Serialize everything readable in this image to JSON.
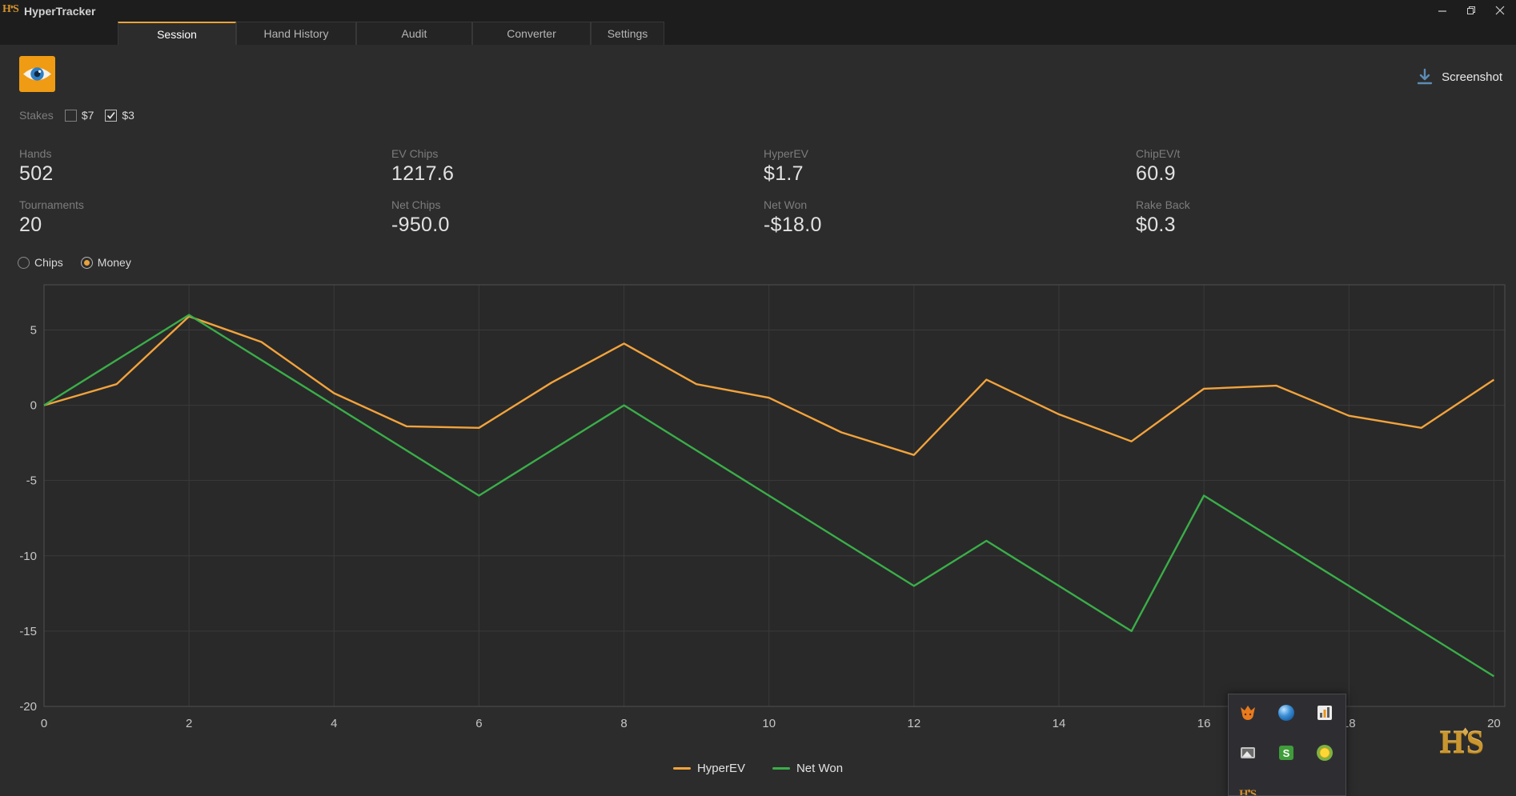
{
  "window": {
    "title": "HyperTracker",
    "controls": {
      "minimize_icon": "minimize-icon",
      "restore_icon": "restore-icon",
      "close_icon": "close-icon"
    }
  },
  "tabs": [
    {
      "label": "Session",
      "active": true
    },
    {
      "label": "Hand History",
      "active": false
    },
    {
      "label": "Audit",
      "active": false
    },
    {
      "label": "Converter",
      "active": false
    },
    {
      "label": "Settings",
      "active": false
    }
  ],
  "toolbar": {
    "screenshot_label": "Screenshot",
    "screenshot_icon": "download-arrow-icon",
    "eye_logo_icon": "eye-icon"
  },
  "filters": {
    "stakes_label": "Stakes",
    "options": [
      {
        "label": "$7",
        "checked": false
      },
      {
        "label": "$3",
        "checked": true
      }
    ]
  },
  "stats": [
    {
      "label": "Hands",
      "value": "502"
    },
    {
      "label": "EV Chips",
      "value": "1217.6"
    },
    {
      "label": "HyperEV",
      "value": "$1.7"
    },
    {
      "label": "ChipEV/t",
      "value": "60.9"
    },
    {
      "label": "Tournaments",
      "value": "20"
    },
    {
      "label": "Net Chips",
      "value": "-950.0"
    },
    {
      "label": "Net Won",
      "value": "-$18.0"
    },
    {
      "label": "Rake Back",
      "value": "$0.3"
    }
  ],
  "view_toggle": {
    "options": [
      {
        "label": "Chips",
        "selected": false
      },
      {
        "label": "Money",
        "selected": true
      }
    ]
  },
  "chart_data": {
    "type": "line",
    "title": "",
    "xlabel": "",
    "ylabel": "",
    "x": [
      0,
      1,
      2,
      3,
      4,
      5,
      6,
      7,
      8,
      9,
      10,
      11,
      12,
      13,
      14,
      15,
      16,
      17,
      18,
      19,
      20
    ],
    "series": [
      {
        "name": "HyperEV",
        "color": "#f2a33c",
        "values": [
          0,
          1.4,
          5.9,
          4.2,
          0.8,
          -1.4,
          -1.5,
          1.5,
          4.1,
          1.4,
          0.5,
          -1.8,
          -3.3,
          1.7,
          -0.6,
          -2.4,
          1.1,
          1.3,
          -0.7,
          -1.5,
          1.7
        ]
      },
      {
        "name": "Net Won",
        "color": "#3aae49",
        "values": [
          0,
          3,
          6,
          3,
          0,
          -3,
          -6,
          -3,
          0,
          -3,
          -6,
          -9,
          -12,
          -9,
          -12,
          -15,
          -6,
          -9,
          -12,
          -15,
          -18
        ]
      }
    ],
    "xticks": [
      0,
      2,
      4,
      6,
      8,
      10,
      12,
      14,
      16,
      18,
      20
    ],
    "yticks": [
      5,
      0,
      -5,
      -10,
      -15,
      -20
    ],
    "xlim": [
      0,
      20.15
    ],
    "ylim": [
      -20,
      8
    ],
    "grid": true,
    "legend_position": "bottom"
  },
  "logo": {
    "h": "H",
    "mark": "♦",
    "s": "S"
  },
  "tray_popup": {
    "icons": [
      "fox-icon",
      "blue-orb-icon",
      "stats-window-icon",
      "screen-capture-icon",
      "green-s-app-icon",
      "coin-icon",
      "hs-logo-partial-icon"
    ]
  },
  "colors": {
    "accent": "#e8a33d",
    "hyperev_line": "#f2a33c",
    "net_won_line": "#3aae49"
  }
}
